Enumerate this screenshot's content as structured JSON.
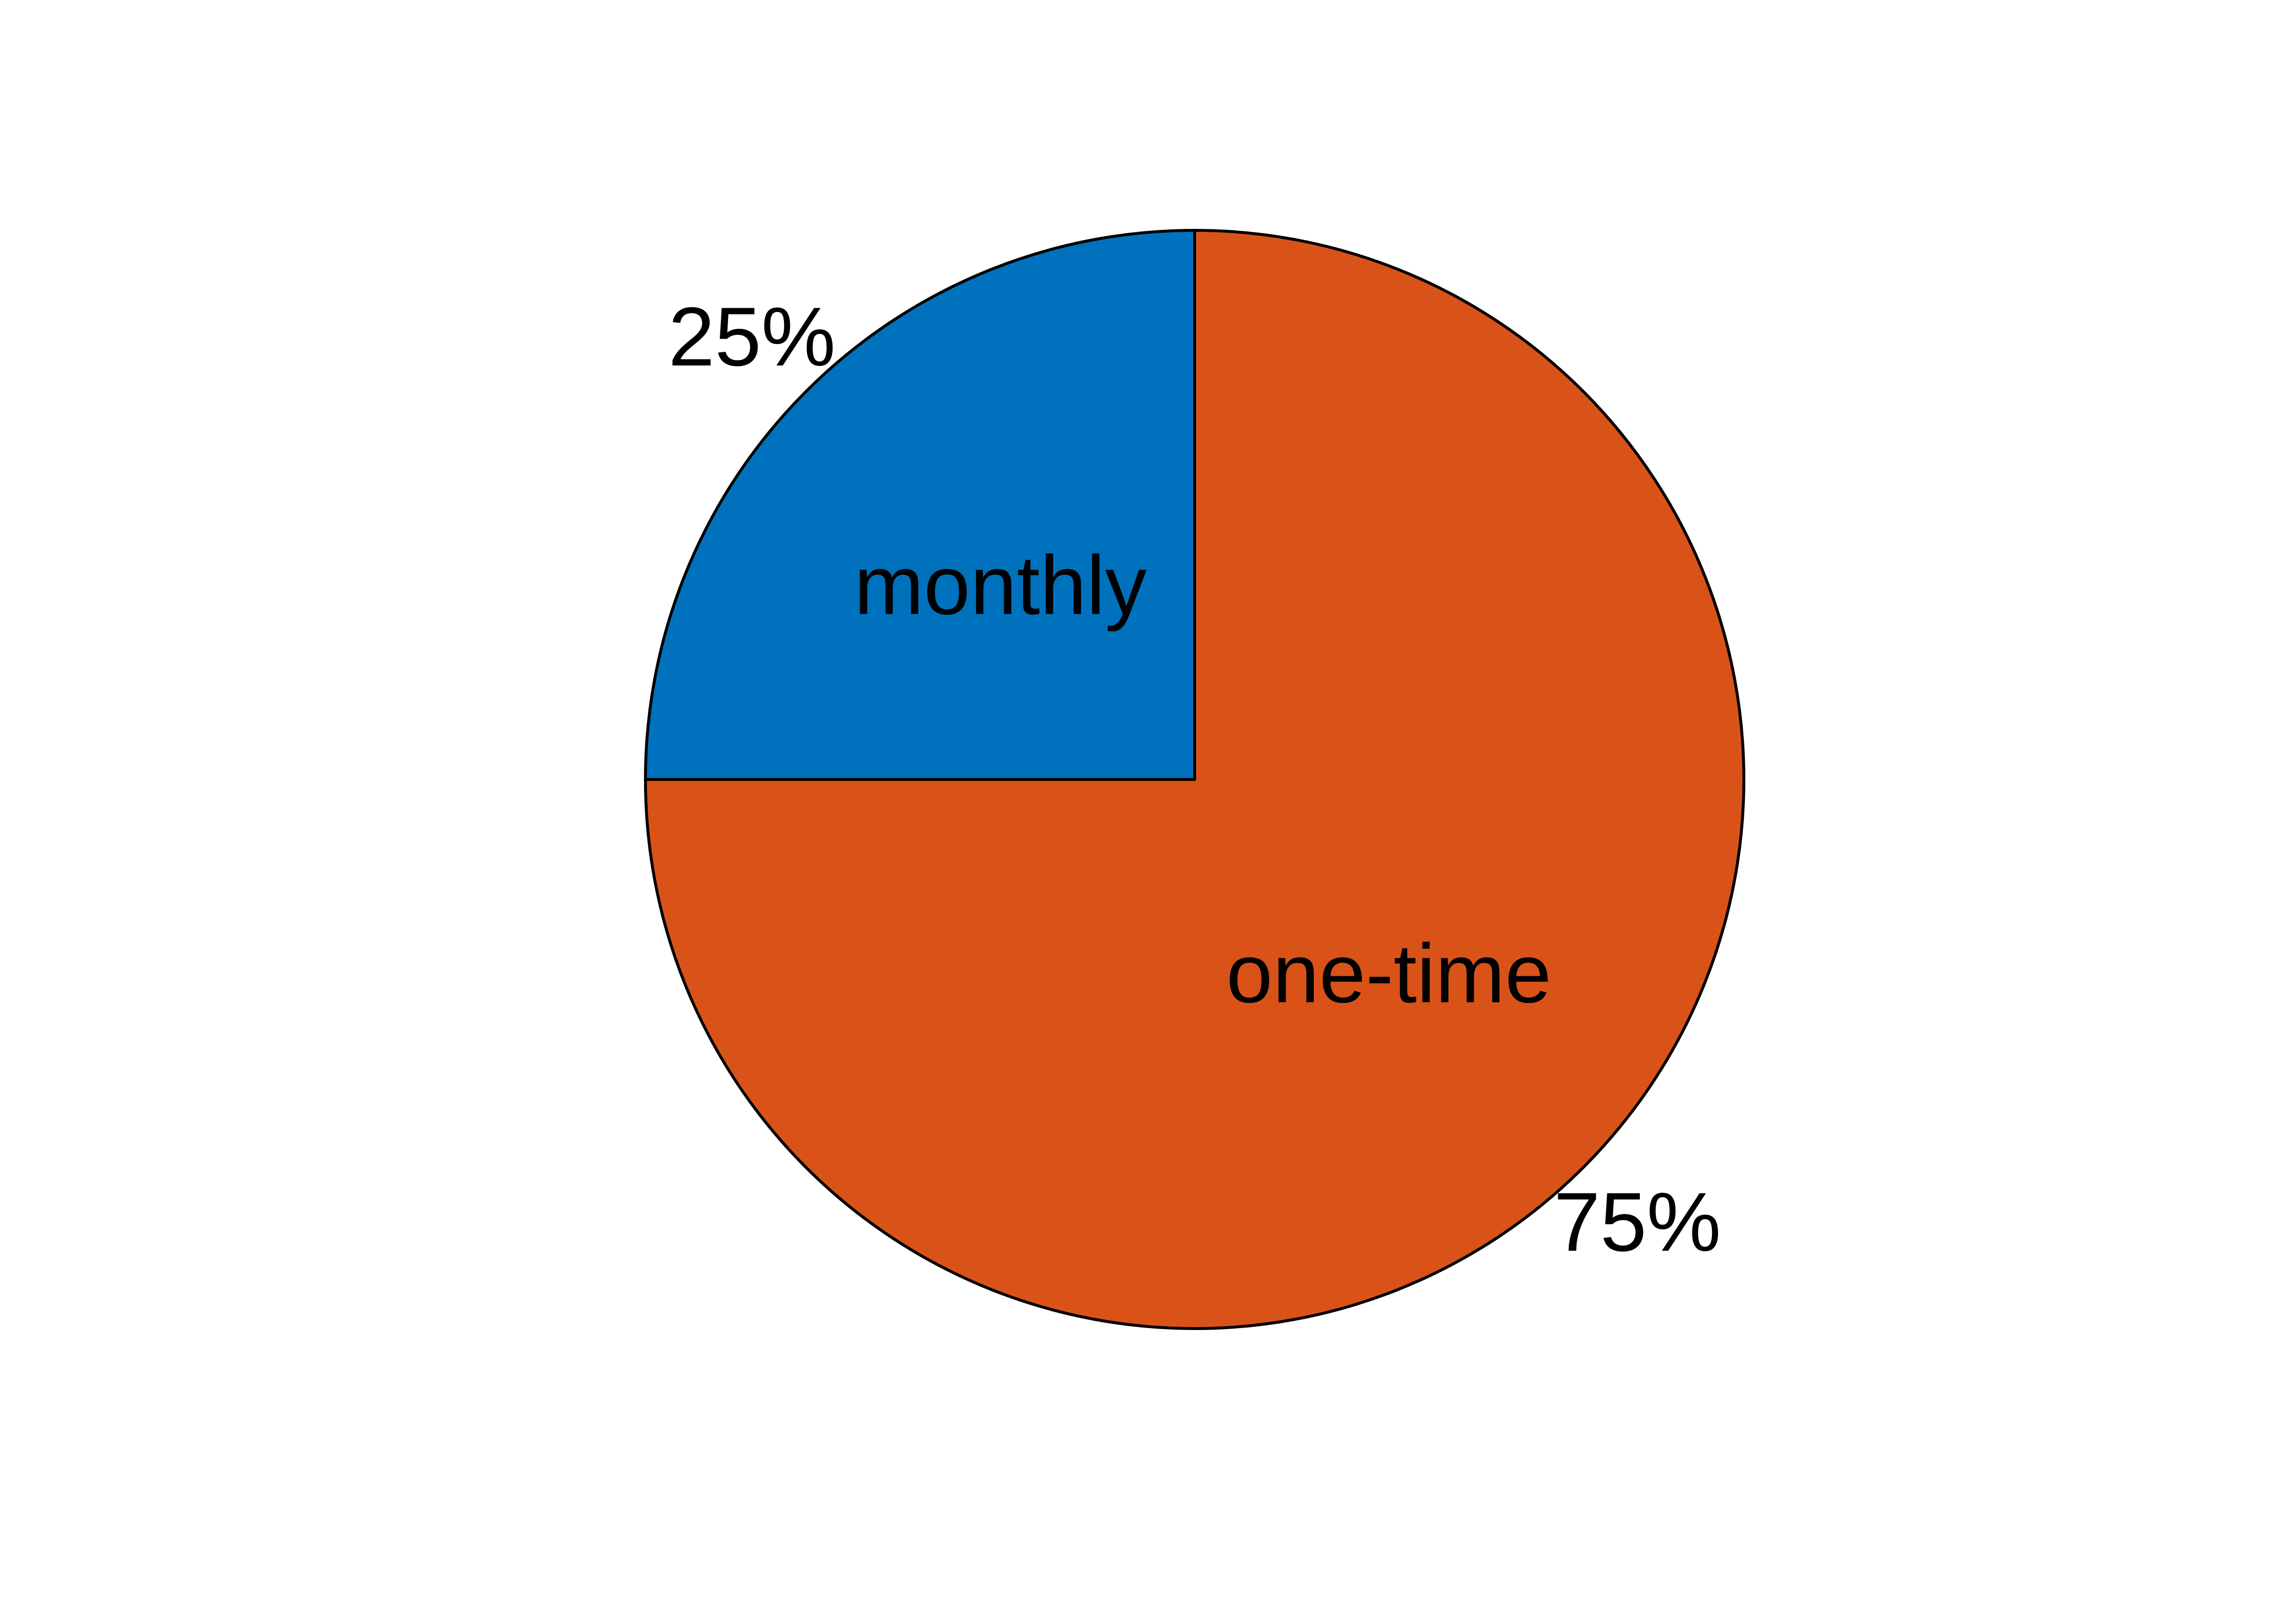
{
  "chart_data": {
    "type": "pie",
    "title": "",
    "slices": [
      {
        "label": "monthly",
        "value": 25,
        "percent_label": "25%",
        "color": "#0072BD"
      },
      {
        "label": "one-time",
        "value": 75,
        "percent_label": "75%",
        "color": "#D95319"
      }
    ],
    "start_angle_deg": 90,
    "direction": "counterclockwise",
    "outline_color": "#000000",
    "legend": "none"
  }
}
